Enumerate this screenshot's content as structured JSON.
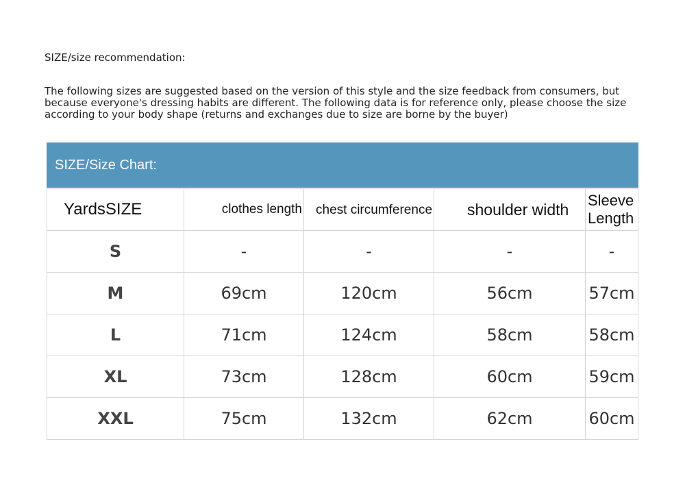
{
  "title": "SIZE/size recommendation:",
  "description": "The following sizes are suggested based on the version of this style and the size feedback from consumers, but because everyone's dressing habits are different. The following data is for reference only, please choose the size according to your body shape (returns and exchanges due to size are borne by the buyer)",
  "chart_title": "SIZE/Size Chart:",
  "header_color": "#5596bd",
  "columns": [
    "YardsSIZE",
    "clothes length",
    "chest circumference",
    "shoulder width",
    "Sleeve Length"
  ],
  "rows": [
    [
      "S",
      "-",
      "-",
      "-",
      "-"
    ],
    [
      "M",
      "69cm",
      "120cm",
      "56cm",
      "57cm"
    ],
    [
      "L",
      "71cm",
      "124cm",
      "58cm",
      "58cm"
    ],
    [
      "XL",
      "73cm",
      "128cm",
      "60cm",
      "59cm"
    ],
    [
      "XXL",
      "75cm",
      "132cm",
      "62cm",
      "60cm"
    ]
  ]
}
